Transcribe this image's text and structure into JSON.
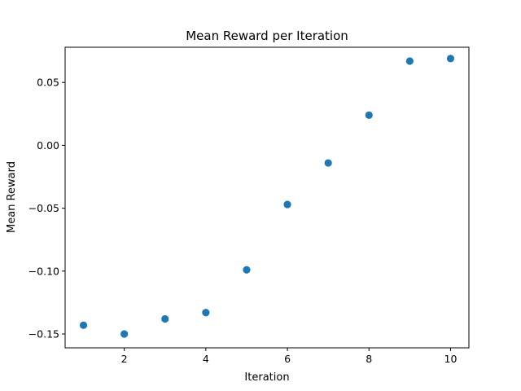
{
  "chart_data": {
    "type": "scatter",
    "title": "Mean Reward per Iteration",
    "xlabel": "Iteration",
    "ylabel": "Mean Reward",
    "xlim": [
      0.55,
      10.45
    ],
    "ylim": [
      -0.161,
      0.078
    ],
    "x_ticks": [
      2,
      4,
      6,
      8,
      10
    ],
    "x_tick_labels": [
      "2",
      "4",
      "6",
      "8",
      "10"
    ],
    "y_ticks": [
      -0.15,
      -0.1,
      -0.05,
      0.0,
      0.05
    ],
    "y_tick_labels": [
      "−0.15",
      "−0.10",
      "−0.05",
      "0.00",
      "0.05"
    ],
    "grid": false,
    "legend": "none",
    "marker_color": "#1f77b4",
    "series": [
      {
        "x": [
          1,
          2,
          3,
          4,
          5,
          6,
          7,
          8,
          9,
          10
        ],
        "y": [
          -0.143,
          -0.15,
          -0.138,
          -0.133,
          -0.099,
          -0.047,
          -0.014,
          0.024,
          0.067,
          0.069
        ]
      }
    ]
  }
}
